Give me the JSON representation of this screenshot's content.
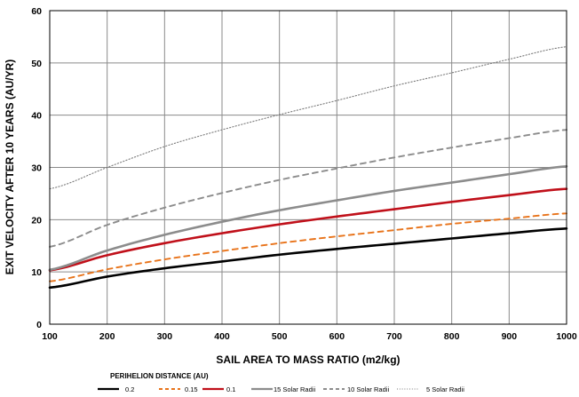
{
  "chart_data": {
    "type": "line",
    "title": "",
    "xlabel": "SAIL AREA TO MASS RATIO (m2/kg)",
    "ylabel": "EXIT VELOCITY AFTER 10 YEARS (AU/YR)",
    "xlim": [
      100,
      1000
    ],
    "ylim": [
      0,
      60
    ],
    "xticks": [
      100,
      200,
      300,
      400,
      500,
      600,
      700,
      800,
      900,
      1000
    ],
    "yticks": [
      0,
      10,
      20,
      30,
      40,
      50,
      60
    ],
    "grid": true,
    "legend_title": "PERIHELION DISTANCE (AU)",
    "legend_position": "bottom",
    "x": [
      100,
      200,
      300,
      400,
      500,
      600,
      700,
      800,
      900,
      1000
    ],
    "series": [
      {
        "name": "0.2",
        "color": "#000000",
        "dash": "solid",
        "width": "thick",
        "values": [
          7.0,
          9.1,
          10.7,
          12.0,
          13.3,
          14.4,
          15.4,
          16.4,
          17.4,
          18.3
        ]
      },
      {
        "name": "0.15",
        "color": "#e8731a",
        "dash": "dashed",
        "width": "medium",
        "values": [
          8.2,
          10.5,
          12.4,
          14.0,
          15.5,
          16.8,
          18.0,
          19.2,
          20.2,
          21.2
        ]
      },
      {
        "name": "0.1",
        "color": "#c0101a",
        "dash": "solid",
        "width": "thick",
        "values": [
          10.3,
          13.2,
          15.5,
          17.4,
          19.1,
          20.6,
          22.0,
          23.4,
          24.7,
          25.9
        ]
      },
      {
        "name": "15 Solar Radii",
        "color": "#8c8c8c",
        "dash": "solid",
        "width": "thick",
        "values": [
          10.4,
          14.1,
          17.1,
          19.6,
          21.8,
          23.7,
          25.5,
          27.1,
          28.7,
          30.2
        ]
      },
      {
        "name": "10 Solar Radii",
        "color": "#8c8c8c",
        "dash": "dashed",
        "width": "medium",
        "values": [
          14.8,
          19.0,
          22.3,
          25.1,
          27.6,
          29.8,
          31.9,
          33.8,
          35.6,
          37.2
        ]
      },
      {
        "name": "5 Solar Radii",
        "color": "#7a7a7a",
        "dash": "dotted",
        "width": "thin",
        "values": [
          25.9,
          30.0,
          34.0,
          37.2,
          40.1,
          42.8,
          45.6,
          48.1,
          50.7,
          53.1
        ]
      }
    ]
  }
}
